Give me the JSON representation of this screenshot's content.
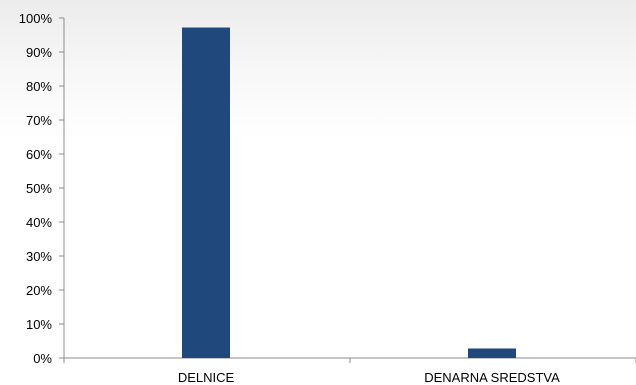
{
  "chart_data": {
    "type": "bar",
    "categories": [
      "DELNICE",
      "DENARNA SREDSTVA"
    ],
    "values": [
      97.2,
      2.8
    ],
    "title": "",
    "xlabel": "",
    "ylabel": "",
    "ylim": [
      0,
      100
    ],
    "yticks": [
      0,
      10,
      20,
      30,
      40,
      50,
      60,
      70,
      80,
      90,
      100
    ],
    "ytick_labels": [
      "0%",
      "10%",
      "20%",
      "30%",
      "40%",
      "50%",
      "60%",
      "70%",
      "80%",
      "90%",
      "100%"
    ],
    "grid": false,
    "legend": "none",
    "bar_color": "#1f497d"
  }
}
